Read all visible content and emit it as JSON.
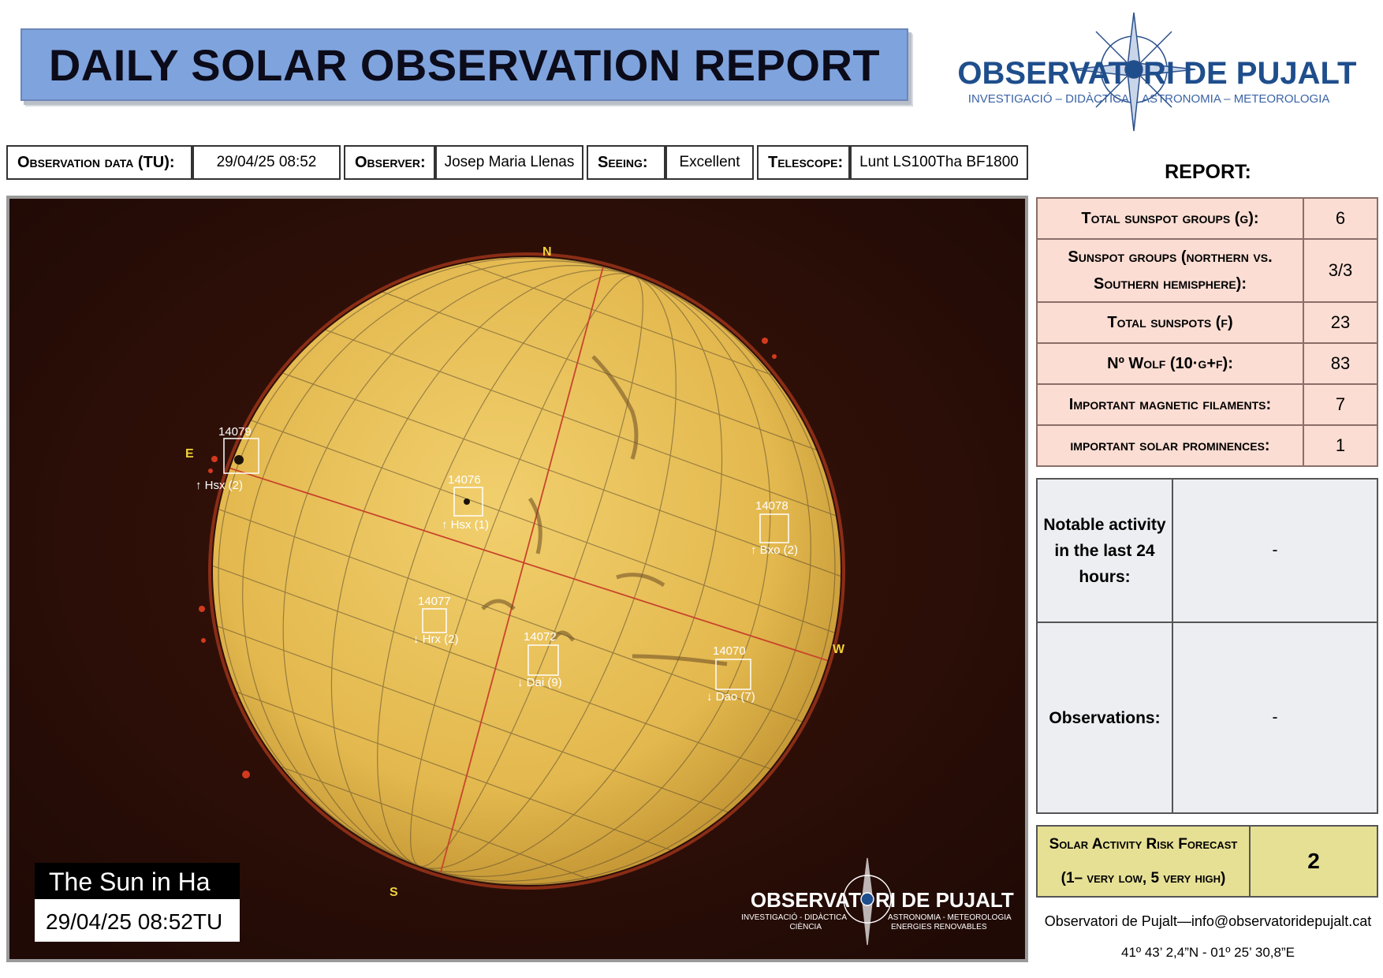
{
  "title": "DAILY SOLAR OBSERVATION REPORT",
  "logo": {
    "name_part1": "OBSERVAT",
    "name_part2": "RI DE PUJALT",
    "tagline_left": "INVESTIGACIÓ – DIDÀCTICA",
    "tagline_right": "ASTRONOMIA – METEOROLOGIA"
  },
  "info": {
    "date_label": "Observation data (TU):",
    "date_value": "29/04/25 08:52",
    "observer_label": "Observer:",
    "observer_value": "Josep Maria Llenas",
    "seeing_label": "Seeing:",
    "seeing_value": "Excellent",
    "telescope_label": "Telescope:",
    "telescope_value": "Lunt LS100Tha BF1800"
  },
  "report": {
    "heading": "REPORT:",
    "stats": [
      {
        "label": "Total sunspot groups (g):",
        "value": "6"
      },
      {
        "label": "Sunspot groups (northern vs. Southern hemisphere):",
        "value": "3/3"
      },
      {
        "label": "Total sunspots (f)",
        "value": "23"
      },
      {
        "label": "Nº Wolf (10·g+f):",
        "value": "83"
      },
      {
        "label": "Important magnetic filaments:",
        "value": "7"
      },
      {
        "label": "important solar prominences:",
        "value": "1"
      }
    ],
    "notable_label": "Notable activity in the last 24 hours:",
    "notable_value": "-",
    "observations_label": "Observations:",
    "observations_value": "-",
    "risk_label_line1": "Solar Activity Risk Forecast",
    "risk_label_line2": "(1– very low, 5 very high)",
    "risk_value": "2"
  },
  "image": {
    "caption_title": "The Sun in Ha",
    "caption_time": "29/04/25 08:52TU",
    "dir_n": "N",
    "dir_s": "S",
    "dir_e": "E",
    "dir_w": "W",
    "watermark_part1": "OBSERVAT",
    "watermark_part2": "RI DE PUJALT",
    "watermark_tag_left1": "INVESTIGACIÓ - DIDÀCTICA",
    "watermark_tag_left2": "CIÈNCIA",
    "watermark_tag_right1": "ASTRONOMIA - METEOROLOGIA",
    "watermark_tag_right2": "ENERGIES RENOVABLES",
    "regions": [
      {
        "id": "14079",
        "cls": "↑ Hsx (2)"
      },
      {
        "id": "14076",
        "cls": "↑ Hsx (1)"
      },
      {
        "id": "14078",
        "cls": "↑ Bxo (2)"
      },
      {
        "id": "14077",
        "cls": "↓ Hrx (2)"
      },
      {
        "id": "14072",
        "cls": "↓ Dai (9)"
      },
      {
        "id": "14070",
        "cls": "↓ Dao (7)"
      }
    ]
  },
  "footer": {
    "contact": "Observatori de Pujalt—info@observatoridepujalt.cat",
    "coords": "41º 43’ 2,4”N - 01º 25’ 30,8”E"
  },
  "colors": {
    "title_bg": "#7fa3dd",
    "stats_bg": "#fbddd3",
    "notes_bg": "#eceef2",
    "risk_bg": "#e6e095",
    "logo_blue": "#1f4e8c",
    "sun": "#e8c35a"
  }
}
